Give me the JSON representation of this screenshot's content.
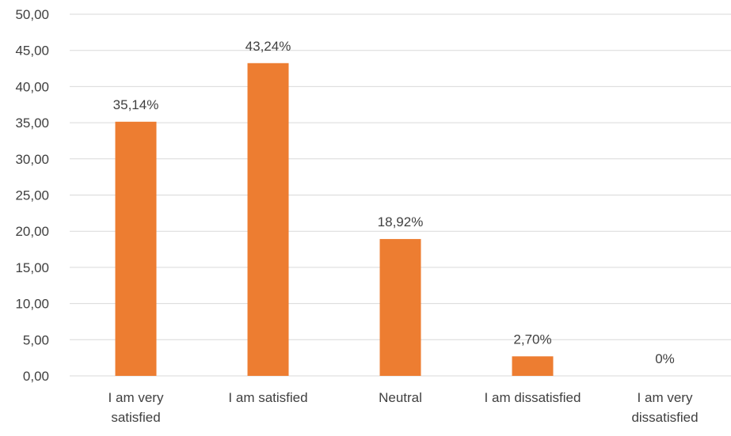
{
  "colors": {
    "bar": "#ED7D31",
    "grid": "#D9D9D9",
    "text": "#404040",
    "background": "#FFFFFF"
  },
  "chart_data": {
    "type": "bar",
    "title": "",
    "xlabel": "",
    "ylabel": "",
    "ylim": [
      0,
      50
    ],
    "y_ticks": [
      "0,00",
      "5,00",
      "10,00",
      "15,00",
      "20,00",
      "25,00",
      "30,00",
      "35,00",
      "40,00",
      "45,00",
      "50,00"
    ],
    "y_tick_values": [
      0,
      5,
      10,
      15,
      20,
      25,
      30,
      35,
      40,
      45,
      50
    ],
    "categories": [
      [
        "I am very",
        "satisfied"
      ],
      [
        "I am satisfied"
      ],
      [
        "Neutral"
      ],
      [
        "I am dissatisfied"
      ],
      [
        "I am very",
        "dissatisfied"
      ]
    ],
    "values": [
      35.14,
      43.24,
      18.92,
      2.7,
      0
    ],
    "data_labels": [
      "35,14%",
      "43,24%",
      "18,92%",
      "2,70%",
      "0%"
    ],
    "grid": true,
    "legend": "none"
  }
}
